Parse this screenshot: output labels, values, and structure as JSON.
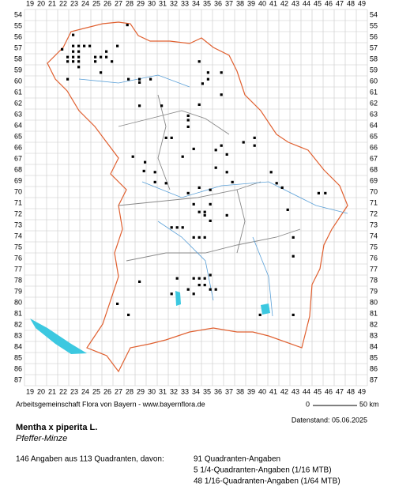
{
  "grid": {
    "columns": [
      19,
      20,
      21,
      22,
      23,
      24,
      25,
      26,
      27,
      28,
      29,
      30,
      31,
      32,
      33,
      34,
      35,
      36,
      37,
      38,
      39,
      40,
      41,
      42,
      43,
      44,
      45,
      46,
      47,
      48,
      49
    ],
    "rows": [
      54,
      55,
      56,
      57,
      58,
      59,
      60,
      61,
      62,
      63,
      64,
      65,
      66,
      67,
      68,
      69,
      70,
      71,
      72,
      73,
      74,
      75,
      76,
      77,
      78,
      79,
      80,
      81,
      82,
      83,
      84,
      85,
      86,
      87
    ]
  },
  "records": [
    [
      27.8,
      54.9
    ],
    [
      22.9,
      55.8
    ],
    [
      21.9,
      57.1
    ],
    [
      22.9,
      56.8
    ],
    [
      23.4,
      56.8
    ],
    [
      23.9,
      56.8
    ],
    [
      24.4,
      56.8
    ],
    [
      22.9,
      57.3
    ],
    [
      23.4,
      57.3
    ],
    [
      22.4,
      57.8
    ],
    [
      22.9,
      57.8
    ],
    [
      23.4,
      57.8
    ],
    [
      24.9,
      57.8
    ],
    [
      25.4,
      57.8
    ],
    [
      25.9,
      57.8
    ],
    [
      22.4,
      58.2
    ],
    [
      22.9,
      58.2
    ],
    [
      23.4,
      58.2
    ],
    [
      24.9,
      58.2
    ],
    [
      26.4,
      58.2
    ],
    [
      23.4,
      58.7
    ],
    [
      25.4,
      59.2
    ],
    [
      22.4,
      59.8
    ],
    [
      26.9,
      56.8
    ],
    [
      25.9,
      57.3
    ],
    [
      27.9,
      59.8
    ],
    [
      28.9,
      59.8
    ],
    [
      28.9,
      60.1
    ],
    [
      29.9,
      59.8
    ],
    [
      30.9,
      62.2
    ],
    [
      28.9,
      62.2
    ],
    [
      33.3,
      63.1
    ],
    [
      33.3,
      63.5
    ],
    [
      31.3,
      65.1
    ],
    [
      31.8,
      65.1
    ],
    [
      34.3,
      58.2
    ],
    [
      35.1,
      59.2
    ],
    [
      35.1,
      59.8
    ],
    [
      34.6,
      60.2
    ],
    [
      36.3,
      59.2
    ],
    [
      36.3,
      61.2
    ],
    [
      34.3,
      62.1
    ],
    [
      33.3,
      64.1
    ],
    [
      28.3,
      66.8
    ],
    [
      29.4,
      67.3
    ],
    [
      30.3,
      68.2
    ],
    [
      29.3,
      68.1
    ],
    [
      30.3,
      69.1
    ],
    [
      32.8,
      66.8
    ],
    [
      31.3,
      69.2
    ],
    [
      33.8,
      66.1
    ],
    [
      35.8,
      66.2
    ],
    [
      36.3,
      65.8
    ],
    [
      36.8,
      66.6
    ],
    [
      35.8,
      67.8
    ],
    [
      36.8,
      68.2
    ],
    [
      37.3,
      69.1
    ],
    [
      38.3,
      65.5
    ],
    [
      39.3,
      65.1
    ],
    [
      39.3,
      65.8
    ],
    [
      40.8,
      68.2
    ],
    [
      41.3,
      69.2
    ],
    [
      41.8,
      69.6
    ],
    [
      45.1,
      70.1
    ],
    [
      45.7,
      70.1
    ],
    [
      33.3,
      70.1
    ],
    [
      34.3,
      69.6
    ],
    [
      35.3,
      69.8
    ],
    [
      33.8,
      71.1
    ],
    [
      34.3,
      71.8
    ],
    [
      35.3,
      71.1
    ],
    [
      34.8,
      71.8
    ],
    [
      34.8,
      72.1
    ],
    [
      35.3,
      72.6
    ],
    [
      36.8,
      72.1
    ],
    [
      31.8,
      73.2
    ],
    [
      32.3,
      73.2
    ],
    [
      32.8,
      73.2
    ],
    [
      33.8,
      74.1
    ],
    [
      34.3,
      74.1
    ],
    [
      34.8,
      74.1
    ],
    [
      42.3,
      71.6
    ],
    [
      42.8,
      74.1
    ],
    [
      42.8,
      75.8
    ],
    [
      32.3,
      77.8
    ],
    [
      33.8,
      77.8
    ],
    [
      34.3,
      77.8
    ],
    [
      34.8,
      77.8
    ],
    [
      34.3,
      78.4
    ],
    [
      34.8,
      78.4
    ],
    [
      35.3,
      77.5
    ],
    [
      35.3,
      78.8
    ],
    [
      35.8,
      78.8
    ],
    [
      33.3,
      78.8
    ],
    [
      33.8,
      79.2
    ],
    [
      28.9,
      78.1
    ],
    [
      31.8,
      79.2
    ],
    [
      26.9,
      80.1
    ],
    [
      27.9,
      81.1
    ],
    [
      39.8,
      81.1
    ],
    [
      42.8,
      81.1
    ]
  ],
  "footer": {
    "credit": "Arbeitsgemeinschaft Flora von Bayern - www.bayernflora.de",
    "scale_start": "0",
    "scale_end": "50 km",
    "date": "Datenstand: 05.06.2025"
  },
  "species": {
    "name": "Mentha x piperita L.",
    "common_name": "Pfeffer-Minze"
  },
  "summary": {
    "total": "146 Angaben aus 113 Quadranten, davon:",
    "breakdown": [
      "91 Quadranten-Angaben",
      "5 1/4-Quadranten-Angaben (1/16 MTB)",
      "48 1/16-Quadranten-Angaben (1/64 MTB)"
    ]
  }
}
